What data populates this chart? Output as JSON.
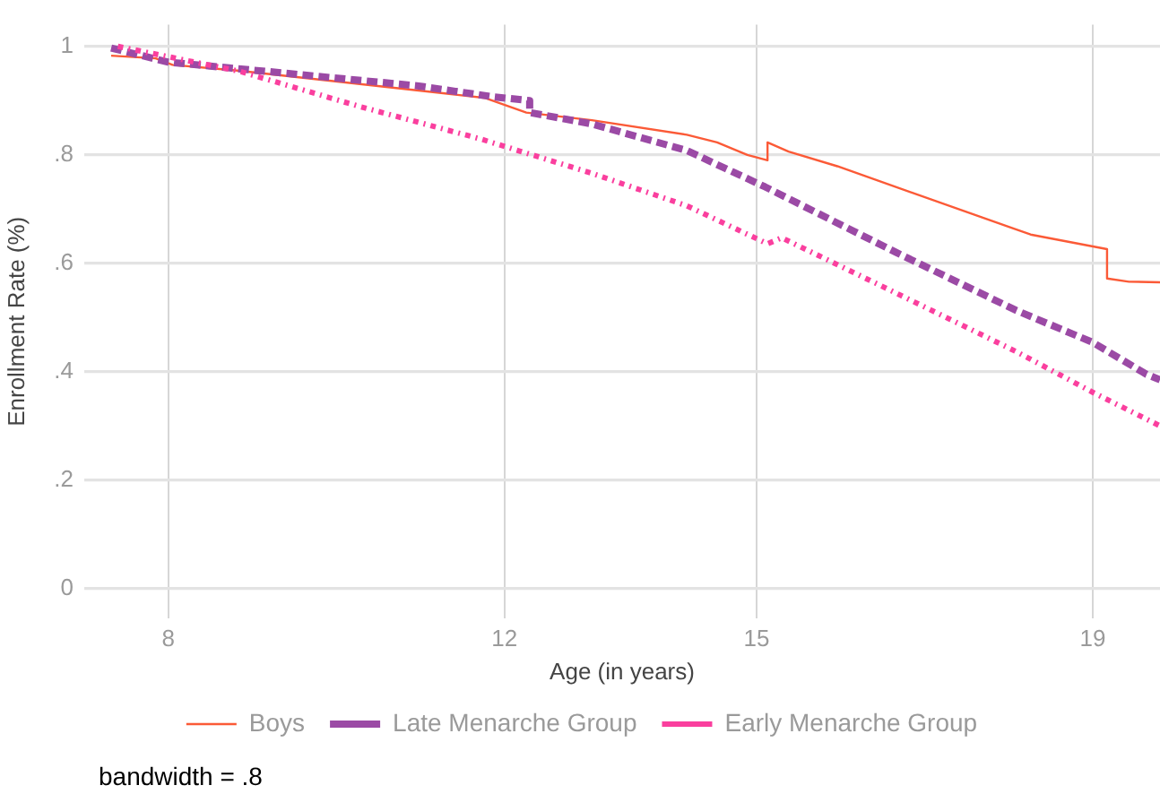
{
  "chart_data": {
    "type": "line",
    "xlabel": "Age (in years)",
    "ylabel": "Enrollment Rate (%)",
    "annotations": [
      "bandwidth = .8"
    ],
    "xlim": [
      7,
      19.8
    ],
    "xticks": [
      8,
      12,
      15,
      19
    ],
    "ylim": [
      -0.055,
      1.04
    ],
    "yticks": [
      {
        "value": 0,
        "label": "0"
      },
      {
        "value": 0.2,
        "label": ".2"
      },
      {
        "value": 0.4,
        "label": ".4"
      },
      {
        "value": 0.6,
        "label": ".6"
      },
      {
        "value": 0.8,
        "label": ".8"
      },
      {
        "value": 1,
        "label": "1"
      }
    ],
    "grid": true,
    "legend": "bottom",
    "series": [
      {
        "name": "Boys",
        "color": "#fb5a37",
        "line_style": "solid",
        "x": [
          7.32,
          7.85,
          8.05,
          8.85,
          11.77,
          12.26,
          13.04,
          14.17,
          14.53,
          14.89,
          15.13,
          15.13,
          15.38,
          15.96,
          18.26,
          19.17,
          19.17,
          19.43,
          19.8
        ],
        "values": [
          0.983,
          0.978,
          0.966,
          0.955,
          0.905,
          0.878,
          0.864,
          0.837,
          0.823,
          0.8,
          0.79,
          0.823,
          0.806,
          0.779,
          0.653,
          0.626,
          0.572,
          0.566,
          0.565
        ]
      },
      {
        "name": "Late Menarche Group",
        "color": "#9b4aa5",
        "line_style": "dashed",
        "x": [
          7.32,
          8,
          9.57,
          10.98,
          11.87,
          12.3,
          12.3,
          13.04,
          14.17,
          15.1,
          16.66,
          18.09,
          19,
          19.64,
          19.8
        ],
        "values": [
          0.997,
          0.971,
          0.948,
          0.927,
          0.907,
          0.9,
          0.878,
          0.857,
          0.808,
          0.741,
          0.62,
          0.513,
          0.454,
          0.395,
          0.385
        ]
      },
      {
        "name": "Early Menarche Group",
        "color": "#fa3f9e",
        "line_style": "dotted",
        "x": [
          7.4,
          8,
          8.85,
          10.28,
          11.7,
          13.04,
          14.17,
          15.13,
          15.3,
          16.66,
          18.09,
          19,
          19.8
        ],
        "values": [
          1.0,
          0.981,
          0.954,
          0.889,
          0.83,
          0.766,
          0.706,
          0.636,
          0.647,
          0.545,
          0.437,
          0.362,
          0.3
        ]
      }
    ]
  }
}
